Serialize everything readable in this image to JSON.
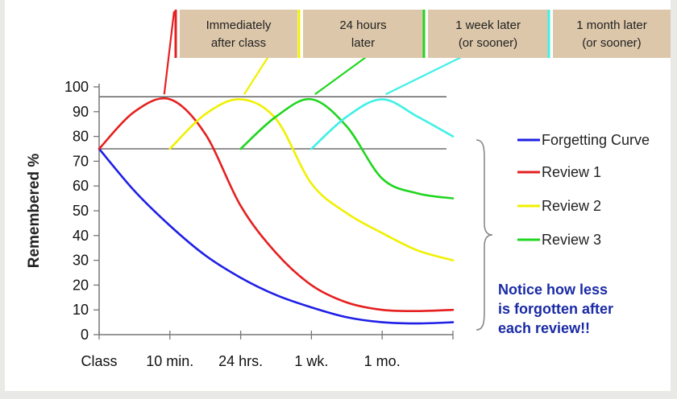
{
  "chart_data": {
    "type": "line",
    "title": "",
    "xlabel": "",
    "ylabel": "Remembered %",
    "ylim": [
      0,
      100
    ],
    "yticks": [
      0,
      10,
      20,
      30,
      40,
      50,
      60,
      70,
      80,
      90,
      100
    ],
    "categories": [
      "Class",
      "10 min.",
      "24 hrs.",
      "1 wk.",
      "1 mo."
    ],
    "grid": false,
    "reference_lines": [
      96,
      75
    ],
    "legend_position": "right",
    "series": [
      {
        "name": "Forgetting Curve",
        "color": "#1f1fe6",
        "x": [
          0,
          0.5,
          1,
          1.5,
          2,
          2.5,
          3,
          3.5,
          4,
          4.5,
          5
        ],
        "y": [
          75,
          58,
          44,
          32,
          23,
          16,
          11,
          7,
          5,
          4.5,
          5
        ]
      },
      {
        "name": "Review 1",
        "color": "#e61f1f",
        "x": [
          0,
          0.5,
          1,
          1.5,
          2,
          2.5,
          3,
          3.5,
          4,
          4.5,
          5
        ],
        "y": [
          75,
          90,
          95,
          81,
          52,
          33,
          20,
          13,
          10,
          9.5,
          10
        ]
      },
      {
        "name": "Review 2",
        "color": "#f0f000",
        "x": [
          1,
          1.5,
          2,
          2.5,
          3,
          3.5,
          4,
          4.5,
          5
        ],
        "y": [
          75,
          89,
          95,
          87,
          61,
          49,
          41,
          34,
          30
        ]
      },
      {
        "name": "Review 3",
        "color": "#1fd61f",
        "x": [
          2,
          2.5,
          3,
          3.5,
          4,
          4.5,
          5
        ],
        "y": [
          75,
          88,
          95,
          84,
          63,
          57,
          55
        ]
      },
      {
        "name": "",
        "color": "#3ff0e6",
        "x": [
          3,
          3.5,
          4,
          4.5,
          5
        ],
        "y": [
          75,
          88,
          95,
          88,
          80
        ]
      }
    ],
    "top_labels": [
      {
        "line1": "Immediately",
        "line2": "after class"
      },
      {
        "line1": "24 hours",
        "line2": "later"
      },
      {
        "line1": "1 week later",
        "line2": "(or sooner)"
      },
      {
        "line1": "1 month later",
        "line2": "(or sooner)"
      }
    ],
    "annotation": [
      "Notice how less",
      "is forgotten after",
      "each review!!"
    ],
    "colors": {
      "axis": "#777777",
      "ref_line": "#555555",
      "label_box": "#dcc7aa",
      "annotation": "#1a2aa6",
      "brace": "#888888"
    }
  }
}
